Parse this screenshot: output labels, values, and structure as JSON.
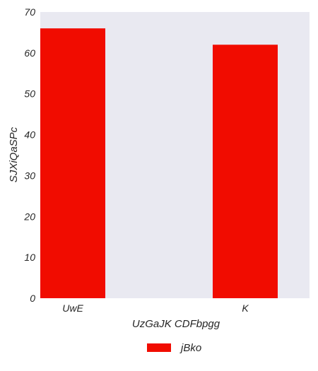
{
  "chart_data": {
    "type": "bar",
    "categories": [
      "UwE",
      "K"
    ],
    "series": [
      {
        "name": "jBko",
        "values": [
          66,
          62
        ],
        "color": "#f10c00"
      }
    ],
    "xlabel": "UzGaJK CDFbpgg",
    "ylabel": "SJXiQaSPc",
    "ylim": [
      0,
      70
    ],
    "yticks": [
      0,
      10,
      20,
      30,
      40,
      50,
      60,
      70
    ],
    "grid": false,
    "plot_background": "#e9e9f1",
    "legend_position": "bottom-center"
  }
}
